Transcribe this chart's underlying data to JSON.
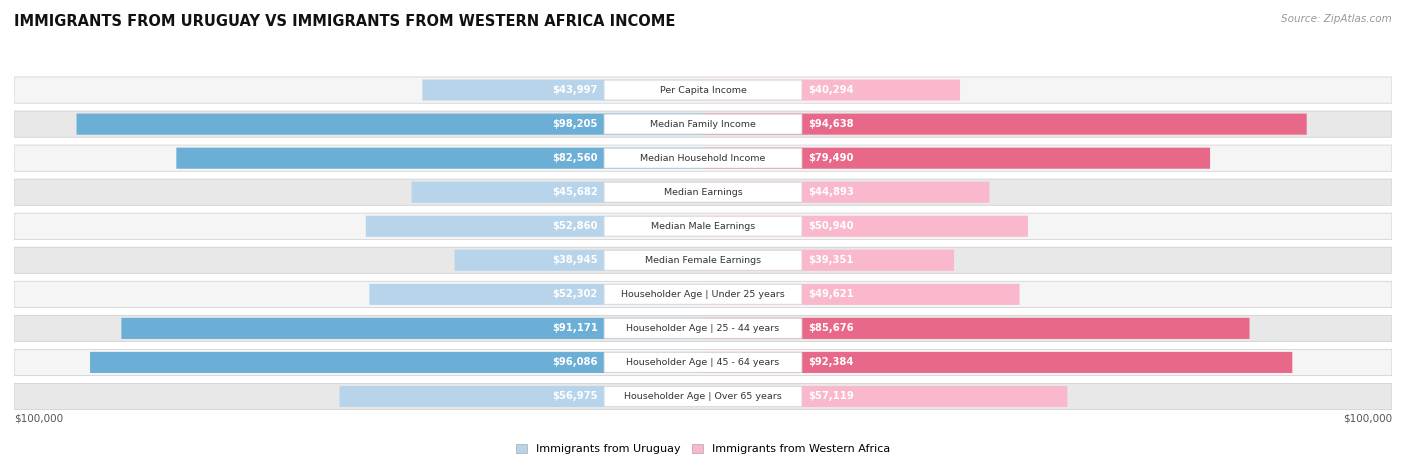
{
  "title": "IMMIGRANTS FROM URUGUAY VS IMMIGRANTS FROM WESTERN AFRICA INCOME",
  "source": "Source: ZipAtlas.com",
  "categories": [
    "Per Capita Income",
    "Median Family Income",
    "Median Household Income",
    "Median Earnings",
    "Median Male Earnings",
    "Median Female Earnings",
    "Householder Age | Under 25 years",
    "Householder Age | 25 - 44 years",
    "Householder Age | 45 - 64 years",
    "Householder Age | Over 65 years"
  ],
  "uruguay_values": [
    43997,
    98205,
    82560,
    45682,
    52860,
    38945,
    52302,
    91171,
    96086,
    56975
  ],
  "western_africa_values": [
    40294,
    94638,
    79490,
    44893,
    50940,
    39351,
    49621,
    85676,
    92384,
    57119
  ],
  "max_value": 100000,
  "uruguay_color_light": "#b8d4ea",
  "uruguay_color_dark": "#6baed6",
  "western_africa_color_light": "#f9b8cc",
  "western_africa_color_dark": "#e8688a",
  "row_bg_light": "#f5f5f5",
  "row_bg_dark": "#e8e8e8",
  "center_box_color": "#ffffff",
  "center_box_edge": "#dddddd",
  "label_white": "#ffffff",
  "label_dark": "#444444",
  "legend_uruguay": "Immigrants from Uruguay",
  "legend_western_africa": "Immigrants from Western Africa",
  "axis_label": "$100,000",
  "threshold_pct": 0.18
}
